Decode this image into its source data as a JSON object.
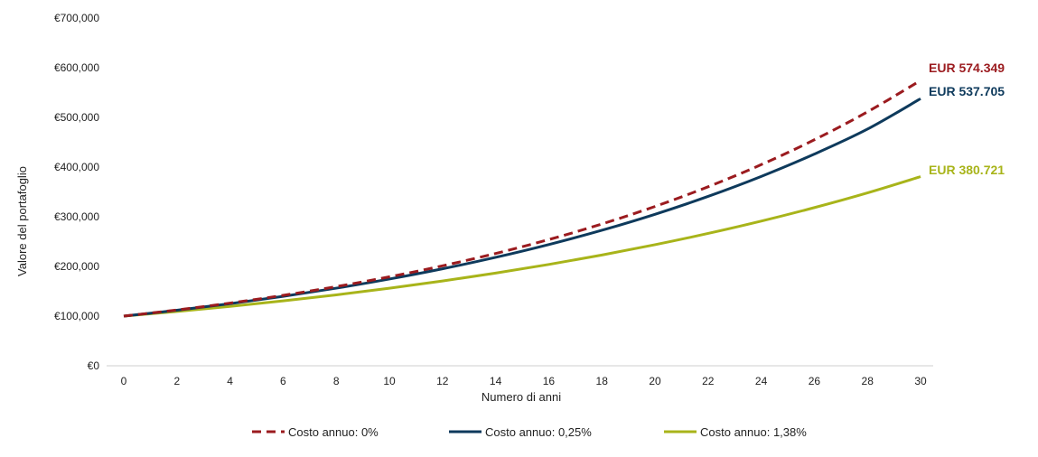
{
  "chart_data": {
    "type": "line",
    "xlabel": "Numero di anni",
    "ylabel": "Valore del portafoglio",
    "xlim": [
      0,
      30
    ],
    "ylim": [
      0,
      700000
    ],
    "x_ticks": [
      "0",
      "2",
      "4",
      "6",
      "8",
      "10",
      "12",
      "14",
      "16",
      "18",
      "20",
      "22",
      "24",
      "26",
      "28",
      "30"
    ],
    "y_ticks": [
      "€0",
      "€100,000",
      "€200,000",
      "€300,000",
      "€400,000",
      "€500,000",
      "€600,000",
      "€700,000"
    ],
    "grid": false,
    "legend_position": "bottom",
    "x": [
      0,
      2,
      4,
      6,
      8,
      10,
      12,
      14,
      16,
      18,
      20,
      22,
      24,
      26,
      28,
      30
    ],
    "series": [
      {
        "name": "Costo annuo: 0%",
        "color": "#9b1b1f",
        "dash": true,
        "end_label": "EUR 574.349",
        "values": [
          100000,
          112359,
          126248,
          141852,
          159385,
          179085,
          201220,
          226090,
          254034,
          285434,
          320714,
          360354,
          404893,
          454937,
          511166,
          574349
        ]
      },
      {
        "name": "Costo annuo: 0,25%",
        "color": "#0e3a5c",
        "dash": false,
        "end_label": "EUR 537.705",
        "values": [
          100000,
          111796,
          124984,
          139727,
          156210,
          174637,
          195237,
          218268,
          244016,
          272800,
          304981,
          340957,
          381176,
          426140,
          476409,
          537705
        ]
      },
      {
        "name": "Costo annuo: 1,38%",
        "color": "#a8b41a",
        "dash": false,
        "end_label": "EUR 380.721",
        "values": [
          100000,
          109318,
          119503,
          130638,
          142810,
          156116,
          170662,
          186563,
          203946,
          222948,
          243721,
          266430,
          291254,
          318391,
          348057,
          380721
        ]
      }
    ]
  }
}
